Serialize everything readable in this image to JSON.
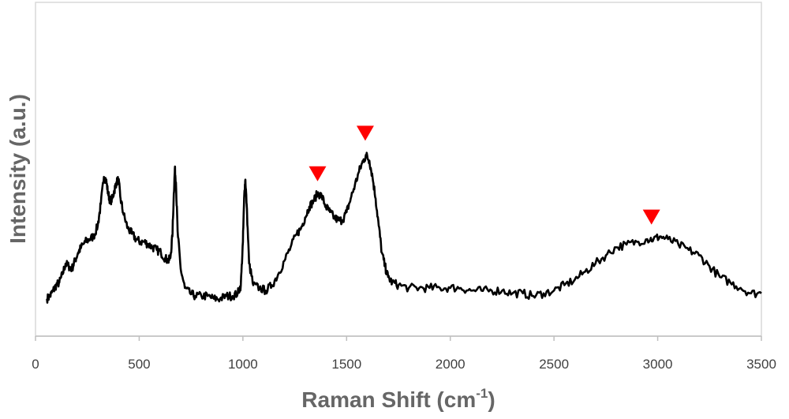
{
  "chart_data": {
    "type": "line",
    "title": "",
    "xlabel": "Raman Shift (cm",
    "xlabel_sup": "-1",
    "xlabel_suffix": ")",
    "ylabel": "Intensity (a.u.)",
    "xlim": [
      0,
      3500
    ],
    "xticks": [
      "0",
      "500",
      "1000",
      "1500",
      "2000",
      "2500",
      "3000",
      "3500"
    ],
    "ylim": [
      0,
      100
    ],
    "yticks": [],
    "grid": false,
    "line_color": "#000000",
    "marker_color": "#ff0000",
    "series": [
      {
        "points": [
          [
            55,
            13
          ],
          [
            70,
            14
          ],
          [
            85,
            16
          ],
          [
            100,
            18
          ],
          [
            115,
            19
          ],
          [
            130,
            22
          ],
          [
            145,
            26
          ],
          [
            160,
            25
          ],
          [
            175,
            24
          ],
          [
            190,
            27
          ],
          [
            205,
            30
          ],
          [
            220,
            32
          ],
          [
            240,
            34
          ],
          [
            260,
            35
          ],
          [
            280,
            36
          ],
          [
            300,
            40
          ],
          [
            315,
            48
          ],
          [
            330,
            58
          ],
          [
            340,
            57
          ],
          [
            350,
            52
          ],
          [
            360,
            49
          ],
          [
            370,
            50
          ],
          [
            380,
            53
          ],
          [
            390,
            56
          ],
          [
            400,
            57
          ],
          [
            410,
            50
          ],
          [
            425,
            44
          ],
          [
            445,
            39
          ],
          [
            465,
            37
          ],
          [
            485,
            35
          ],
          [
            505,
            34
          ],
          [
            525,
            34
          ],
          [
            545,
            33
          ],
          [
            565,
            32
          ],
          [
            585,
            31
          ],
          [
            605,
            30
          ],
          [
            625,
            28
          ],
          [
            640,
            27
          ],
          [
            650,
            28
          ],
          [
            660,
            36
          ],
          [
            667,
            52
          ],
          [
            672,
            61
          ],
          [
            677,
            56
          ],
          [
            685,
            38
          ],
          [
            700,
            24
          ],
          [
            720,
            17
          ],
          [
            745,
            15
          ],
          [
            770,
            14
          ],
          [
            800,
            14
          ],
          [
            830,
            14
          ],
          [
            860,
            13
          ],
          [
            890,
            13
          ],
          [
            920,
            14
          ],
          [
            950,
            14
          ],
          [
            975,
            15
          ],
          [
            990,
            18
          ],
          [
            1000,
            34
          ],
          [
            1007,
            52
          ],
          [
            1012,
            57
          ],
          [
            1018,
            48
          ],
          [
            1030,
            26
          ],
          [
            1050,
            18
          ],
          [
            1080,
            17
          ],
          [
            1110,
            16
          ],
          [
            1140,
            18
          ],
          [
            1170,
            22
          ],
          [
            1200,
            27
          ],
          [
            1230,
            32
          ],
          [
            1260,
            37
          ],
          [
            1280,
            39
          ],
          [
            1300,
            43
          ],
          [
            1320,
            47
          ],
          [
            1340,
            49
          ],
          [
            1360,
            52
          ],
          [
            1380,
            51
          ],
          [
            1400,
            47
          ],
          [
            1420,
            45
          ],
          [
            1440,
            43
          ],
          [
            1460,
            42
          ],
          [
            1480,
            42
          ],
          [
            1500,
            45
          ],
          [
            1520,
            50
          ],
          [
            1540,
            55
          ],
          [
            1560,
            60
          ],
          [
            1580,
            64
          ],
          [
            1595,
            66
          ],
          [
            1610,
            64
          ],
          [
            1625,
            58
          ],
          [
            1640,
            50
          ],
          [
            1655,
            40
          ],
          [
            1670,
            30
          ],
          [
            1685,
            25
          ],
          [
            1700,
            21
          ],
          [
            1720,
            19
          ],
          [
            1750,
            18
          ],
          [
            1800,
            17
          ],
          [
            1850,
            17
          ],
          [
            1900,
            17
          ],
          [
            1950,
            17
          ],
          [
            2000,
            17
          ],
          [
            2050,
            17
          ],
          [
            2100,
            16
          ],
          [
            2150,
            16
          ],
          [
            2200,
            16
          ],
          [
            2250,
            16
          ],
          [
            2300,
            15
          ],
          [
            2350,
            15
          ],
          [
            2400,
            14
          ],
          [
            2450,
            15
          ],
          [
            2500,
            16
          ],
          [
            2550,
            18
          ],
          [
            2600,
            20
          ],
          [
            2650,
            23
          ],
          [
            2700,
            26
          ],
          [
            2750,
            29
          ],
          [
            2800,
            32
          ],
          [
            2850,
            33
          ],
          [
            2900,
            34
          ],
          [
            2950,
            35
          ],
          [
            2980,
            35
          ],
          [
            3010,
            36
          ],
          [
            3050,
            35
          ],
          [
            3100,
            33
          ],
          [
            3150,
            31
          ],
          [
            3200,
            29
          ],
          [
            3250,
            25
          ],
          [
            3300,
            21
          ],
          [
            3350,
            19
          ],
          [
            3400,
            17
          ],
          [
            3450,
            15
          ],
          [
            3500,
            15
          ]
        ]
      }
    ],
    "markers": [
      {
        "x": 1360,
        "y": 59
      },
      {
        "x": 1590,
        "y": 74
      },
      {
        "x": 2970,
        "y": 43
      }
    ]
  }
}
